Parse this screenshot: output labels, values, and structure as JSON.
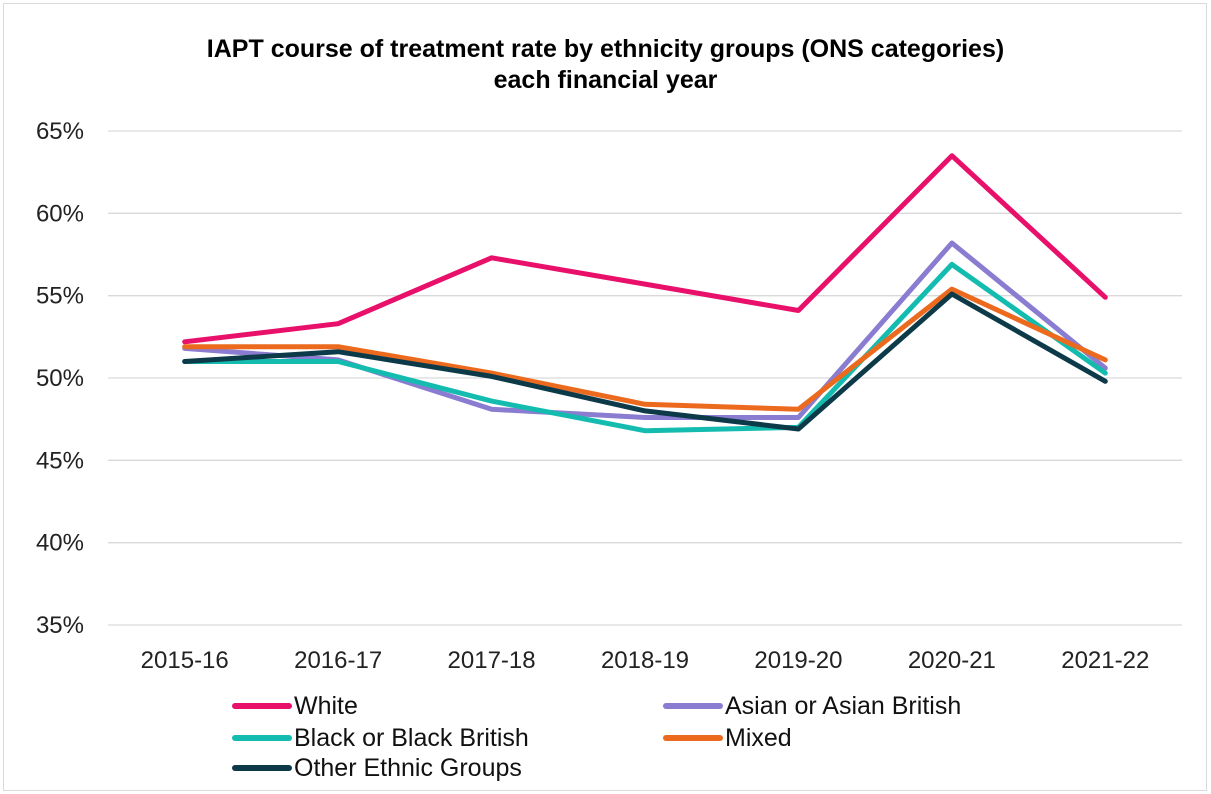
{
  "chart_data": {
    "type": "line",
    "title_line1": "IAPT course of treatment rate by ethnicity groups (ONS categories)",
    "title_line2": "each financial year",
    "xlabel": "",
    "ylabel": "",
    "categories": [
      "2015-16",
      "2016-17",
      "2017-18",
      "2018-19",
      "2019-20",
      "2020-21",
      "2021-22"
    ],
    "ylim": [
      35,
      65
    ],
    "yticks": [
      35,
      40,
      45,
      50,
      55,
      60,
      65
    ],
    "ytick_labels": [
      "35%",
      "40%",
      "45%",
      "50%",
      "55%",
      "60%",
      "65%"
    ],
    "grid": true,
    "legend_position": "bottom",
    "series": [
      {
        "name": "White",
        "color": "#e8106a",
        "values": [
          52.2,
          53.3,
          57.3,
          55.7,
          54.1,
          63.5,
          54.9
        ]
      },
      {
        "name": "Asian or Asian British",
        "color": "#8a7cd0",
        "values": [
          51.8,
          51.1,
          48.1,
          47.6,
          47.6,
          58.2,
          50.6
        ]
      },
      {
        "name": "Black or Black British",
        "color": "#14bcb0",
        "values": [
          51.0,
          51.0,
          48.6,
          46.8,
          47.0,
          56.9,
          50.3
        ]
      },
      {
        "name": "Mixed",
        "color": "#ec6a1e",
        "values": [
          51.9,
          51.9,
          50.3,
          48.4,
          48.1,
          55.4,
          51.1
        ]
      },
      {
        "name": "Other Ethnic Groups",
        "color": "#0d3a48",
        "values": [
          51.0,
          51.6,
          50.1,
          48.0,
          46.9,
          55.1,
          49.8
        ]
      }
    ]
  }
}
